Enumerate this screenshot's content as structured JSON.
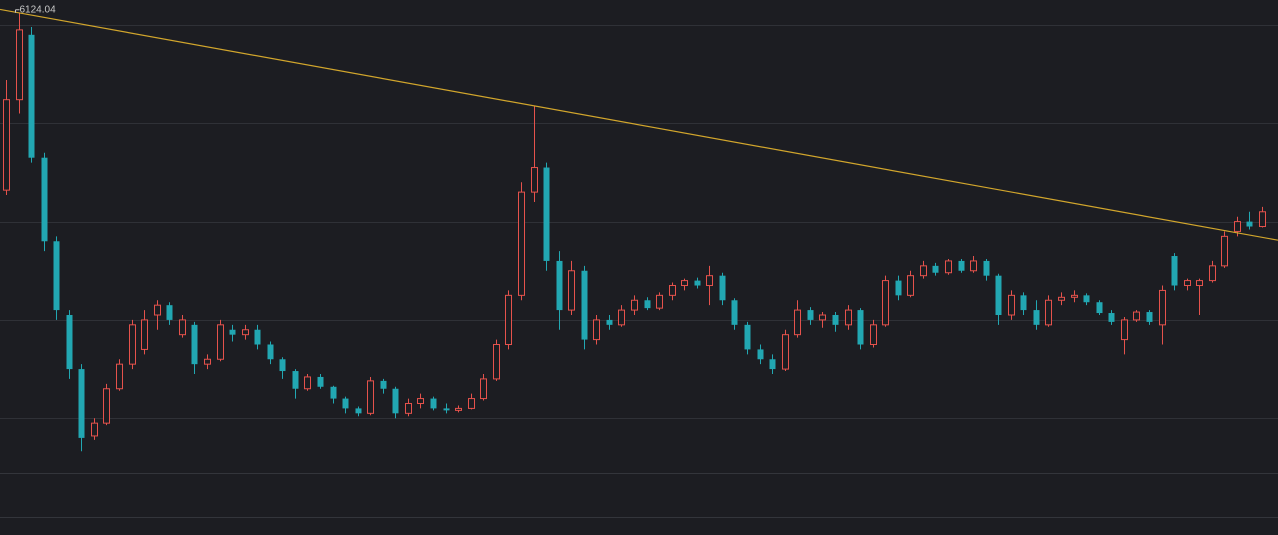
{
  "chart_data": {
    "type": "candlestick",
    "up_color": "#e5524c",
    "down_color": "#22a7b2",
    "grid": true,
    "ylim": [
      1443,
      6254
    ],
    "yticks": [
      2000,
      3000,
      4000,
      5000,
      6000
    ],
    "trendline": {
      "color": "#d2a62c",
      "from": [
        1,
        6124.04
      ],
      "to": [
        42,
        5178.19
      ]
    },
    "open": [
      4320,
      5240,
      5900,
      4650,
      3800,
      3050,
      2500,
      1820,
      1950,
      2300,
      2550,
      2700,
      3050,
      3150,
      2850,
      2950,
      2550,
      2600,
      2900,
      2850,
      2900,
      2750,
      2600,
      2480,
      2300,
      2420,
      2320,
      2200,
      2100,
      2050,
      2380,
      2300,
      2050,
      2150,
      2200,
      2100,
      2080,
      2100,
      2200,
      2400,
      2750,
      3250,
      4300,
      4550,
      3600,
      3100,
      3500,
      2800,
      3000,
      2950,
      3100,
      3200,
      3120,
      3250,
      3350,
      3400,
      3350,
      3450,
      3200,
      2950,
      2700,
      2600,
      2500,
      2850,
      3100,
      3000,
      3050,
      2950,
      3100,
      2750,
      2950,
      3400,
      3250,
      3450,
      3550,
      3480,
      3600,
      3500,
      3600,
      3450,
      3050,
      3250,
      3100,
      2950,
      3200,
      3230,
      3250,
      3180,
      3070,
      2800,
      3000,
      3080,
      2950,
      3650,
      3350,
      3350,
      3400,
      3550,
      3900,
      4000,
      3950
    ],
    "high": [
      5440,
      6124.04,
      5980,
      4700,
      3850,
      3100,
      2550,
      2000,
      2350,
      2600,
      3000,
      3100,
      3200,
      3180,
      3050,
      2980,
      2650,
      3000,
      2950,
      2950,
      2950,
      2780,
      2620,
      2500,
      2450,
      2450,
      2330,
      2220,
      2120,
      2420,
      2400,
      2320,
      2200,
      2250,
      2220,
      2150,
      2130,
      2250,
      2450,
      2800,
      3300,
      4400,
      5178.19,
      4600,
      3700,
      3600,
      3550,
      3050,
      3050,
      3150,
      3250,
      3230,
      3280,
      3380,
      3420,
      3430,
      3550,
      3480,
      3220,
      2980,
      2750,
      2650,
      2900,
      3200,
      3130,
      3080,
      3080,
      3150,
      3120,
      3000,
      3450,
      3450,
      3500,
      3600,
      3580,
      3620,
      3620,
      3650,
      3620,
      3470,
      3300,
      3280,
      3200,
      3250,
      3280,
      3300,
      3270,
      3200,
      3100,
      3030,
      3100,
      3100,
      3350,
      3680,
      3420,
      3420,
      3600,
      3900,
      4050,
      4100,
      4150
    ],
    "low": [
      4270,
      5100,
      4600,
      3700,
      3000,
      2400,
      1664,
      1780,
      1930,
      2280,
      2500,
      2650,
      2900,
      2950,
      2820,
      2450,
      2500,
      2580,
      2780,
      2800,
      2700,
      2550,
      2400,
      2200,
      2280,
      2300,
      2150,
      2050,
      2020,
      2030,
      2250,
      2000,
      2020,
      2100,
      2080,
      2050,
      2060,
      2090,
      2180,
      2380,
      2700,
      3200,
      4200,
      3500,
      2900,
      3050,
      2700,
      2750,
      2900,
      2930,
      3050,
      3100,
      3100,
      3200,
      3300,
      3320,
      3150,
      3150,
      2900,
      2650,
      2550,
      2450,
      2480,
      2820,
      2950,
      2920,
      2880,
      2900,
      2700,
      2720,
      2930,
      3200,
      3230,
      3420,
      3450,
      3460,
      3480,
      3480,
      3400,
      2950,
      3000,
      3050,
      2900,
      2930,
      3150,
      3180,
      3150,
      3050,
      2950,
      2650,
      2980,
      2950,
      2750,
      3300,
      3300,
      3050,
      3380,
      3530,
      3850,
      3920,
      3940
    ],
    "close": [
      5240,
      5950,
      4650,
      3800,
      3100,
      2500,
      1800,
      1950,
      2300,
      2550,
      2950,
      3000,
      3150,
      3000,
      3000,
      2550,
      2600,
      2950,
      2850,
      2900,
      2750,
      2600,
      2480,
      2300,
      2420,
      2320,
      2200,
      2100,
      2050,
      2380,
      2300,
      2050,
      2150,
      2200,
      2100,
      2080,
      2100,
      2200,
      2400,
      2750,
      3250,
      4300,
      4550,
      3600,
      3100,
      3500,
      2800,
      3000,
      2950,
      3100,
      3200,
      3120,
      3250,
      3350,
      3400,
      3350,
      3450,
      3200,
      2950,
      2700,
      2600,
      2500,
      2850,
      3100,
      3000,
      3050,
      2950,
      3100,
      2750,
      2950,
      3400,
      3250,
      3450,
      3550,
      3480,
      3600,
      3500,
      3600,
      3450,
      3050,
      3250,
      3100,
      2950,
      3200,
      3230,
      3250,
      3180,
      3070,
      2980,
      3000,
      3080,
      2980,
      3300,
      3350,
      3400,
      3400,
      3550,
      3850,
      4000,
      3950,
      4100
    ]
  }
}
